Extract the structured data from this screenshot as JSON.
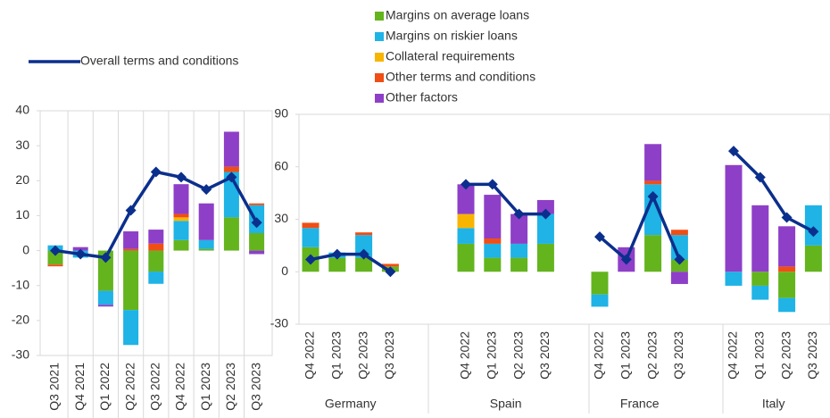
{
  "chart_data": [
    {
      "type": "bar",
      "categories": [
        "Q3 2021",
        "Q4 2021",
        "Q1 2022",
        "Q2 2022",
        "Q3 2022",
        "Q4 2022",
        "Q1 2023",
        "Q2 2023",
        "Q3 2023"
      ],
      "ylim": [
        -30,
        40
      ],
      "yticks": [
        -30,
        -20,
        -10,
        0,
        10,
        20,
        30,
        40
      ],
      "series": [
        {
          "color": "#64b41e",
          "values": [
            -4,
            0,
            -11.5,
            -17,
            -6,
            3,
            0.5,
            9.5,
            5
          ]
        },
        {
          "color": "#1fb3e6",
          "values": [
            1.5,
            -2,
            -4,
            -10,
            -3.5,
            5.5,
            2.5,
            13,
            8
          ]
        },
        {
          "color": "#f7b500",
          "values": [
            0,
            0,
            0,
            0,
            0,
            1,
            0,
            0,
            0
          ]
        },
        {
          "color": "#f04e14",
          "values": [
            -0.5,
            0,
            0,
            0.5,
            2,
            1,
            0,
            1.5,
            0.5
          ]
        },
        {
          "color": "#8e3fc7",
          "values": [
            0,
            1,
            -0.5,
            5,
            4,
            8.5,
            10.5,
            10,
            -1
          ]
        },
        {
          "name": "Overall terms and conditions",
          "type": "line",
          "color": "#0b2f8c",
          "values": [
            0,
            -1,
            -2,
            11.5,
            22.5,
            21,
            17.5,
            21,
            8
          ]
        }
      ]
    },
    {
      "type": "bar",
      "categories": [
        "Q4 2022",
        "Q1 2023",
        "Q2 2023",
        "Q3 2023",
        "Q4 2022",
        "Q1 2023",
        "Q2 2023",
        "Q3 2023",
        "Q4 2022",
        "Q1 2023",
        "Q2 2023",
        "Q3 2023",
        "Q4 2022",
        "Q1 2023",
        "Q2 2023",
        "Q3 2023"
      ],
      "groups": [
        "Germany",
        "Spain",
        "France",
        "Italy"
      ],
      "ylim": [
        -30,
        90
      ],
      "yticks": [
        -30,
        0,
        30,
        60,
        90
      ],
      "series": [
        {
          "name": "Margins on average loans",
          "color": "#64b41e",
          "values": [
            14,
            8,
            8,
            3,
            16,
            8,
            8,
            16,
            -13,
            0,
            21,
            7,
            0,
            -8,
            -15,
            15
          ]
        },
        {
          "name": "Margins on riskier loans",
          "color": "#1fb3e6",
          "values": [
            11,
            3,
            13,
            0,
            9,
            8,
            8,
            17,
            -7,
            0,
            29,
            14,
            -8,
            -8,
            -8,
            23
          ]
        },
        {
          "name": "Collateral requirements",
          "color": "#f7b500",
          "values": [
            0,
            0,
            0,
            0,
            8,
            0,
            0,
            0,
            0,
            0,
            0,
            0,
            0,
            0,
            0,
            0
          ]
        },
        {
          "name": "Other terms and conditions",
          "color": "#f04e14",
          "values": [
            3,
            0,
            1.5,
            1.5,
            0,
            3,
            0,
            0,
            0,
            0,
            2,
            3,
            0,
            0,
            3,
            0
          ]
        },
        {
          "name": "Other factors",
          "color": "#8e3fc7",
          "values": [
            0,
            0,
            0,
            0,
            17,
            25,
            17,
            8,
            0,
            14,
            21,
            -7,
            61,
            38,
            23,
            0
          ]
        },
        {
          "type": "line",
          "color": "#0b2f8c",
          "values": [
            7,
            10,
            10,
            0,
            50,
            50,
            33,
            33,
            20,
            7,
            43,
            7,
            69,
            54,
            31,
            23
          ]
        }
      ]
    }
  ]
}
